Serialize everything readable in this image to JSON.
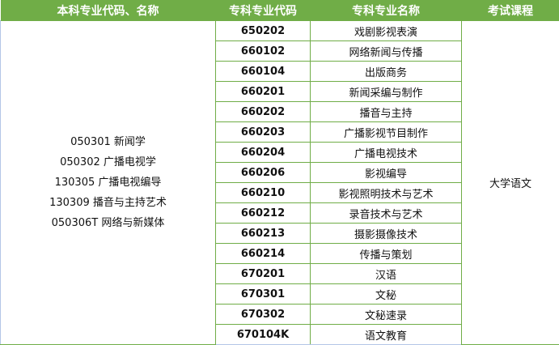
{
  "headers": [
    "本科专业代码、名称",
    "专科专业代码",
    "专科专业名称",
    "考试课程"
  ],
  "undergraduate_majors": [
    "050301 新闻学",
    "050302 广播电视学",
    "130305 广播电视编导",
    "130309 播音与主持艺术",
    "050306T 网络与新媒体"
  ],
  "exam_course": "大学语文",
  "rows": [
    {
      "code": "650202",
      "name": "戏剧影视表演"
    },
    {
      "code": "660102",
      "name": "网络新闻与传播"
    },
    {
      "code": "660104",
      "name": "出版商务"
    },
    {
      "code": "660201",
      "name": "新闻采编与制作"
    },
    {
      "code": "660202",
      "name": "播音与主持"
    },
    {
      "code": "660203",
      "name": "广播影视节目制作"
    },
    {
      "code": "660204",
      "name": "广播电视技术"
    },
    {
      "code": "660206",
      "name": "影视编导"
    },
    {
      "code": "660210",
      "name": "影视照明技术与艺术"
    },
    {
      "code": "660212",
      "name": "录音技术与艺术"
    },
    {
      "code": "660213",
      "name": "摄影摄像技术"
    },
    {
      "code": "660214",
      "name": "传播与策划"
    },
    {
      "code": "670201",
      "name": "汉语"
    },
    {
      "code": "670301",
      "name": "文秘"
    },
    {
      "code": "670302",
      "name": "文秘速录"
    },
    {
      "code": "670104K",
      "name": "语文教育"
    }
  ],
  "colors": {
    "header_bg": "#70ad47",
    "border": "#70ad47"
  }
}
